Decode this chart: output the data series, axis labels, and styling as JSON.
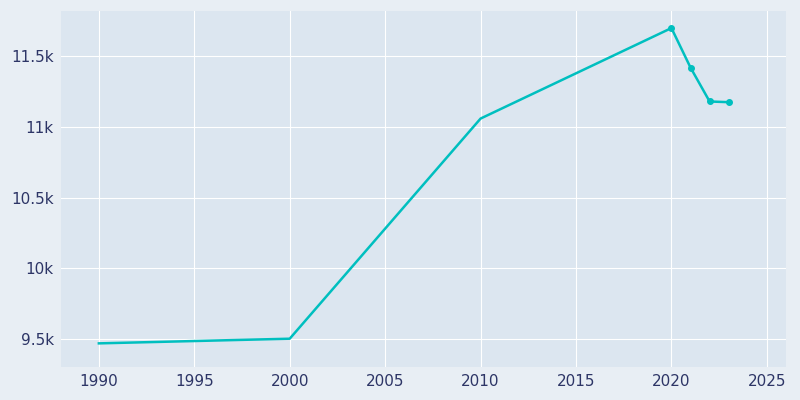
{
  "years": [
    1990,
    2000,
    2010,
    2020,
    2021,
    2022,
    2023
  ],
  "population": [
    9467,
    9500,
    11059,
    11700,
    11420,
    11180,
    11175
  ],
  "line_color": "#00BFBF",
  "marker_color": "#00BFBF",
  "fig_bg_color": "#e8eef4",
  "plot_bg_color": "#dce6f0",
  "xlabel": "",
  "ylabel": "",
  "xlim": [
    1988,
    2026
  ],
  "ylim": [
    9300,
    11820
  ],
  "yticks": [
    9500,
    10000,
    10500,
    11000,
    11500
  ],
  "ytick_labels": [
    "9.5k",
    "10k",
    "10.5k",
    "11k",
    "11.5k"
  ],
  "xticks": [
    1990,
    1995,
    2000,
    2005,
    2010,
    2015,
    2020,
    2025
  ],
  "grid_color": "#ffffff",
  "tick_color": "#2d3566",
  "line_width": 1.8,
  "marker_size": 4,
  "marker_points": [
    2020,
    2021,
    2022,
    2023
  ],
  "tick_fontsize": 11
}
